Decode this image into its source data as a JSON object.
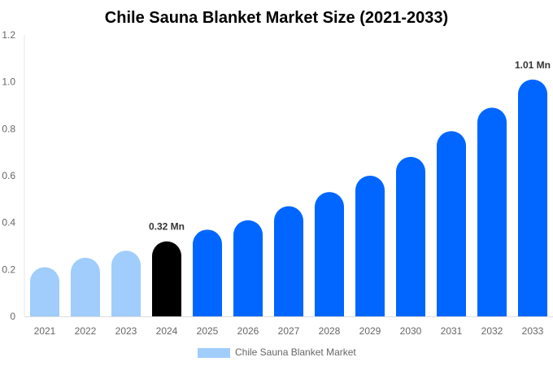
{
  "chart_data": {
    "type": "bar",
    "title": "Chile Sauna Blanket Market Size (2021-2033)",
    "xlabel": "",
    "ylabel": "",
    "categories": [
      "2021",
      "2022",
      "2023",
      "2024",
      "2025",
      "2026",
      "2027",
      "2028",
      "2029",
      "2030",
      "2031",
      "2032",
      "2033"
    ],
    "series": [
      {
        "name": "Chile Sauna Blanket Market",
        "values": [
          0.21,
          0.25,
          0.28,
          0.32,
          0.37,
          0.41,
          0.47,
          0.53,
          0.6,
          0.68,
          0.79,
          0.89,
          1.01
        ]
      }
    ],
    "ylim": [
      0,
      1.2
    ],
    "yticks": [
      "0",
      "0.2",
      "0.4",
      "0.6",
      "0.8",
      "1.0",
      "1.2"
    ],
    "data_labels": [
      {
        "index": 3,
        "text": "0.32 Mn"
      },
      {
        "index": 12,
        "text": "1.01 Mn"
      }
    ],
    "colors": {
      "historical": "#a0cdfb",
      "current": "#000000",
      "forecast": "#0066ff"
    },
    "grid": false,
    "legend_placement": "bottom-center"
  }
}
